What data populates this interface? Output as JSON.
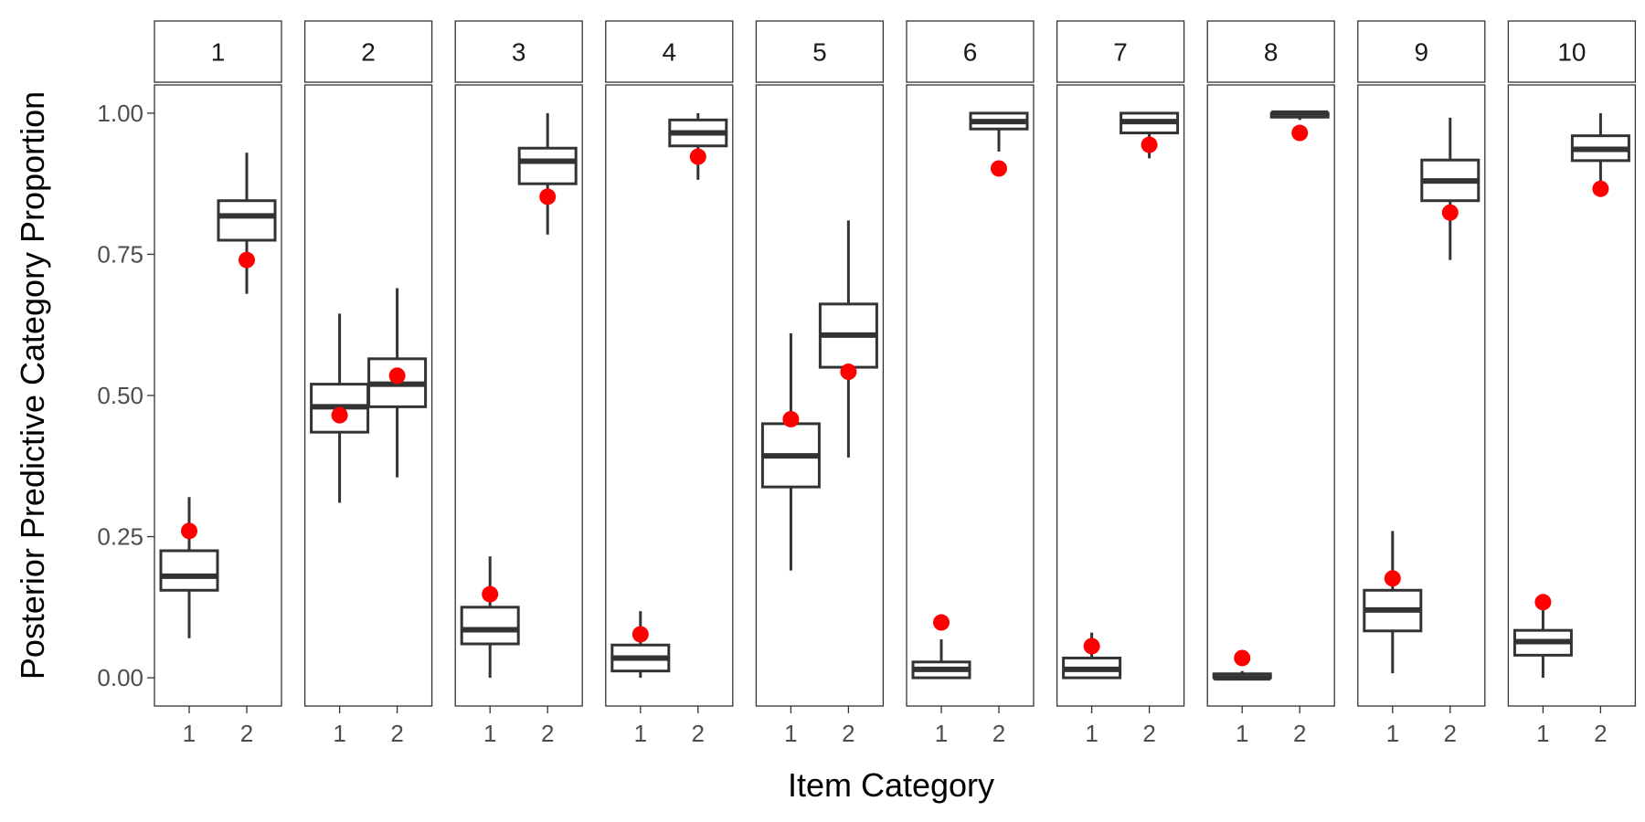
{
  "chart_data": {
    "type": "boxplot",
    "xlabel": "Item Category",
    "ylabel": "Posterior Predictive Category Proportion",
    "ylim": [
      -0.05,
      1.05
    ],
    "yticks": [
      0.0,
      0.25,
      0.5,
      0.75,
      1.0
    ],
    "ytick_labels": [
      "0.00",
      "0.25",
      "0.50",
      "0.75",
      "1.00"
    ],
    "categories": [
      "1",
      "2"
    ],
    "observed_color": "#ff0000",
    "box_color": "#333333",
    "panels": [
      {
        "label": "1",
        "boxes": [
          {
            "category": "1",
            "lower": 0.07,
            "q1": 0.155,
            "median": 0.18,
            "q3": 0.225,
            "upper": 0.32,
            "observed": 0.26
          },
          {
            "category": "2",
            "lower": 0.68,
            "q1": 0.775,
            "median": 0.818,
            "q3": 0.845,
            "upper": 0.93,
            "observed": 0.74
          }
        ]
      },
      {
        "label": "2",
        "boxes": [
          {
            "category": "1",
            "lower": 0.31,
            "q1": 0.435,
            "median": 0.48,
            "q3": 0.52,
            "upper": 0.645,
            "observed": 0.465
          },
          {
            "category": "2",
            "lower": 0.355,
            "q1": 0.48,
            "median": 0.52,
            "q3": 0.565,
            "upper": 0.69,
            "observed": 0.535
          }
        ]
      },
      {
        "label": "3",
        "boxes": [
          {
            "category": "1",
            "lower": 0.0,
            "q1": 0.06,
            "median": 0.085,
            "q3": 0.125,
            "upper": 0.215,
            "observed": 0.148
          },
          {
            "category": "2",
            "lower": 0.785,
            "q1": 0.875,
            "median": 0.915,
            "q3": 0.938,
            "upper": 1.0,
            "observed": 0.852
          }
        ]
      },
      {
        "label": "4",
        "boxes": [
          {
            "category": "1",
            "lower": 0.0,
            "q1": 0.012,
            "median": 0.035,
            "q3": 0.058,
            "upper": 0.118,
            "observed": 0.077
          },
          {
            "category": "2",
            "lower": 0.882,
            "q1": 0.942,
            "median": 0.965,
            "q3": 0.988,
            "upper": 1.0,
            "observed": 0.923
          }
        ]
      },
      {
        "label": "5",
        "boxes": [
          {
            "category": "1",
            "lower": 0.19,
            "q1": 0.338,
            "median": 0.393,
            "q3": 0.45,
            "upper": 0.61,
            "observed": 0.458
          },
          {
            "category": "2",
            "lower": 0.39,
            "q1": 0.55,
            "median": 0.607,
            "q3": 0.662,
            "upper": 0.81,
            "observed": 0.542
          }
        ]
      },
      {
        "label": "6",
        "boxes": [
          {
            "category": "1",
            "lower": 0.0,
            "q1": 0.0,
            "median": 0.015,
            "q3": 0.028,
            "upper": 0.068,
            "observed": 0.098
          },
          {
            "category": "2",
            "lower": 0.932,
            "q1": 0.972,
            "median": 0.985,
            "q3": 1.0,
            "upper": 1.0,
            "observed": 0.902
          }
        ]
      },
      {
        "label": "7",
        "boxes": [
          {
            "category": "1",
            "lower": 0.0,
            "q1": 0.0,
            "median": 0.015,
            "q3": 0.035,
            "upper": 0.08,
            "observed": 0.056
          },
          {
            "category": "2",
            "lower": 0.92,
            "q1": 0.965,
            "median": 0.985,
            "q3": 1.0,
            "upper": 1.0,
            "observed": 0.944
          }
        ]
      },
      {
        "label": "8",
        "boxes": [
          {
            "category": "1",
            "lower": 0.0,
            "q1": 0.0,
            "median": 0.0,
            "q3": 0.007,
            "upper": 0.012,
            "observed": 0.035
          },
          {
            "category": "2",
            "lower": 0.988,
            "q1": 0.993,
            "median": 1.0,
            "q3": 1.0,
            "upper": 1.0,
            "observed": 0.965
          }
        ]
      },
      {
        "label": "9",
        "boxes": [
          {
            "category": "1",
            "lower": 0.008,
            "q1": 0.083,
            "median": 0.12,
            "q3": 0.155,
            "upper": 0.26,
            "observed": 0.176
          },
          {
            "category": "2",
            "lower": 0.74,
            "q1": 0.845,
            "median": 0.88,
            "q3": 0.917,
            "upper": 0.992,
            "observed": 0.824
          }
        ]
      },
      {
        "label": "10",
        "boxes": [
          {
            "category": "1",
            "lower": 0.0,
            "q1": 0.04,
            "median": 0.064,
            "q3": 0.084,
            "upper": 0.135,
            "observed": 0.134
          },
          {
            "category": "2",
            "lower": 0.865,
            "q1": 0.916,
            "median": 0.936,
            "q3": 0.96,
            "upper": 1.0,
            "observed": 0.866
          }
        ]
      }
    ]
  }
}
